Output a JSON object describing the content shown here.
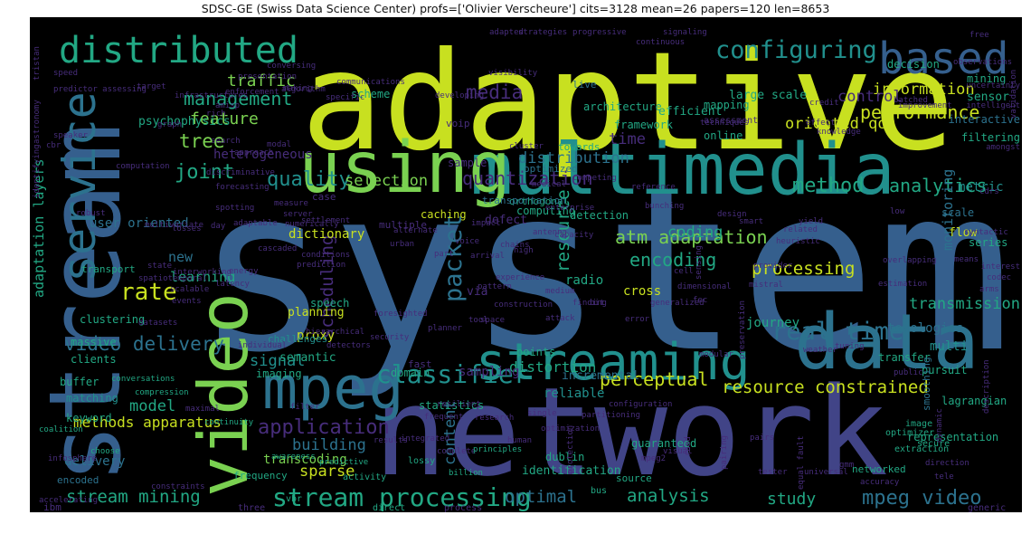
{
  "title": "SDSC-GE (Swiss Data Science Center) profs=['Olivier Verscheure'] cits=3128 mean=26 papers=120 len=8653",
  "palette": {
    "yellow": "#c8e020",
    "lime": "#7ad151",
    "green": "#3dbc74",
    "teal": "#22a884",
    "cyan": "#21908d",
    "steel": "#2c728e",
    "blue": "#355f8d",
    "indigo": "#414487",
    "purple": "#472d7b",
    "violet": "#440154"
  },
  "words": [
    {
      "t": "system"
    },
    {
      "t": "adaptive"
    },
    {
      "t": "network"
    },
    {
      "t": "stream"
    },
    {
      "t": "multimedia"
    },
    {
      "t": "using"
    },
    {
      "t": "data"
    },
    {
      "t": "video"
    },
    {
      "t": "streaming"
    },
    {
      "t": "based"
    },
    {
      "t": "distributed"
    },
    {
      "t": "mpeg"
    },
    {
      "t": "service"
    },
    {
      "t": "stream processing"
    },
    {
      "t": "configuring"
    },
    {
      "t": "classifier"
    },
    {
      "t": "real time"
    },
    {
      "t": "video delivery"
    },
    {
      "t": "stream mining"
    },
    {
      "t": "application"
    },
    {
      "t": "management"
    },
    {
      "t": "quality"
    },
    {
      "t": "packet"
    },
    {
      "t": "rate"
    },
    {
      "t": "tree"
    },
    {
      "t": "joint"
    },
    {
      "t": "media"
    },
    {
      "t": "method"
    },
    {
      "t": "analytics"
    },
    {
      "t": "performance"
    },
    {
      "t": "atm adaptation"
    },
    {
      "t": "quantization"
    },
    {
      "t": "perceptual"
    },
    {
      "t": "resource constrained"
    },
    {
      "t": "encoding"
    },
    {
      "t": "processing"
    },
    {
      "t": "optimal"
    },
    {
      "t": "analysis"
    },
    {
      "t": "study"
    },
    {
      "t": "mpeg video"
    },
    {
      "t": "traffic"
    },
    {
      "t": "feature"
    },
    {
      "t": "information"
    },
    {
      "t": "oriented qos"
    },
    {
      "t": "control"
    },
    {
      "t": "distribution"
    },
    {
      "t": "selection"
    },
    {
      "t": "coding"
    },
    {
      "t": "resource"
    },
    {
      "t": "scheduling"
    },
    {
      "t": "signal"
    },
    {
      "t": "model"
    },
    {
      "t": "building"
    },
    {
      "t": "sparse"
    },
    {
      "t": "content"
    },
    {
      "t": "distortion"
    },
    {
      "t": "methods apparatus"
    },
    {
      "t": "adaptation layers"
    },
    {
      "t": "new"
    },
    {
      "t": "learning"
    },
    {
      "t": "user oriented"
    },
    {
      "t": "heterogeneous"
    },
    {
      "t": "psychophysics"
    },
    {
      "t": "large scale"
    },
    {
      "t": "efficient"
    },
    {
      "t": "time"
    },
    {
      "t": "framework"
    },
    {
      "t": "transmission"
    },
    {
      "t": "multi"
    },
    {
      "t": "monitoring"
    },
    {
      "t": "topologies"
    },
    {
      "t": "journey"
    },
    {
      "t": "proxy"
    },
    {
      "t": "dictionary"
    },
    {
      "t": "radio"
    },
    {
      "t": "cross"
    },
    {
      "t": "sampling"
    },
    {
      "t": "reliable"
    },
    {
      "t": "incremental"
    },
    {
      "t": "identification"
    },
    {
      "t": "guaranteed"
    },
    {
      "t": "transcoding"
    },
    {
      "t": "delivery"
    },
    {
      "t": "semantic"
    },
    {
      "t": "planning"
    },
    {
      "t": "via"
    },
    {
      "t": "speech"
    },
    {
      "t": "computing"
    },
    {
      "t": "defect"
    },
    {
      "t": "caching"
    },
    {
      "t": "detection"
    },
    {
      "t": "metric"
    },
    {
      "t": "flow"
    },
    {
      "t": "series"
    },
    {
      "t": "scale"
    },
    {
      "t": "sensor"
    },
    {
      "t": "decision"
    },
    {
      "t": "mining"
    },
    {
      "t": "interactive"
    },
    {
      "t": "filtering"
    },
    {
      "t": "online"
    },
    {
      "t": "towards"
    },
    {
      "t": "assessment"
    },
    {
      "t": "architecture"
    },
    {
      "t": "mapping"
    },
    {
      "t": "live"
    },
    {
      "t": "scheme"
    },
    {
      "t": "voip"
    },
    {
      "t": "sample"
    },
    {
      "t": "optimized"
    },
    {
      "t": "orthogonal"
    },
    {
      "t": "transportation"
    },
    {
      "t": "multiple"
    },
    {
      "t": "case"
    },
    {
      "t": "transport"
    },
    {
      "t": "massive"
    },
    {
      "t": "clustering"
    },
    {
      "t": "clients"
    },
    {
      "t": "buffer"
    },
    {
      "t": "keyword"
    },
    {
      "t": "matching"
    },
    {
      "t": "challenges"
    },
    {
      "t": "imaging"
    },
    {
      "t": "points"
    },
    {
      "t": "statistics"
    },
    {
      "t": "domain"
    },
    {
      "t": "fast"
    },
    {
      "t": "transfer"
    },
    {
      "t": "pursuit"
    },
    {
      "t": "lagrangian"
    },
    {
      "t": "smoothing"
    },
    {
      "t": "representation"
    },
    {
      "t": "dublin"
    },
    {
      "t": "source"
    },
    {
      "t": "lossy"
    },
    {
      "t": "encoded"
    },
    {
      "t": "frequency"
    },
    {
      "t": "activity"
    },
    {
      "t": "vbr"
    },
    {
      "t": "bus"
    },
    {
      "t": "networked"
    },
    {
      "t": "extraction"
    },
    {
      "t": "secure"
    },
    {
      "t": "optimizer"
    },
    {
      "t": "image"
    },
    {
      "t": "ibm"
    },
    {
      "t": "generic"
    },
    {
      "t": "direct"
    },
    {
      "t": "process"
    },
    {
      "t": "three"
    },
    {
      "t": "constraints"
    },
    {
      "t": "accelerating"
    },
    {
      "t": "infosphere"
    },
    {
      "t": "choose"
    },
    {
      "t": "coalition"
    },
    {
      "t": "conversations"
    },
    {
      "t": "compression"
    },
    {
      "t": "maximal"
    },
    {
      "t": "continuity"
    },
    {
      "t": "awareness"
    },
    {
      "t": "predictive"
    },
    {
      "t": "complete"
    },
    {
      "t": "results"
    },
    {
      "t": "integrated"
    },
    {
      "t": "billion"
    },
    {
      "t": "principles"
    },
    {
      "t": "visual"
    },
    {
      "t": "pairs"
    },
    {
      "t": "tester"
    },
    {
      "t": "validation"
    },
    {
      "t": "amongst"
    },
    {
      "t": "intelligent"
    },
    {
      "t": "uncertainty"
    },
    {
      "t": "observations"
    },
    {
      "t": "free"
    },
    {
      "t": "signaling"
    },
    {
      "t": "progressive"
    },
    {
      "t": "adapted"
    },
    {
      "t": "strategies"
    },
    {
      "t": "continuous"
    },
    {
      "t": "techniques"
    },
    {
      "t": "knowledge"
    },
    {
      "t": "effect"
    },
    {
      "t": "credit"
    },
    {
      "t": "batched"
    },
    {
      "t": "improvement"
    },
    {
      "t": "presentation"
    },
    {
      "t": "conversing"
    },
    {
      "t": "making"
    },
    {
      "t": "enforcement"
    },
    {
      "t": "infrastructures"
    },
    {
      "t": "algorithm"
    },
    {
      "t": "specific"
    },
    {
      "t": "communications"
    },
    {
      "t": "visibility"
    },
    {
      "t": "speed"
    },
    {
      "t": "predictor assessing"
    },
    {
      "t": "target"
    },
    {
      "t": "amisp"
    },
    {
      "t": "rich"
    },
    {
      "t": "speaker"
    },
    {
      "t": "graph"
    },
    {
      "t": "developing"
    },
    {
      "t": "search"
    },
    {
      "t": "computation"
    },
    {
      "t": "modal"
    },
    {
      "t": "cbr"
    },
    {
      "t": "approach"
    },
    {
      "t": "discriminative"
    },
    {
      "t": "forecasting"
    },
    {
      "t": "server"
    },
    {
      "t": "settlement"
    },
    {
      "t": "enterprise"
    },
    {
      "t": "medical"
    },
    {
      "t": "reference"
    },
    {
      "t": "bunching"
    },
    {
      "t": "cluster"
    },
    {
      "t": "competing"
    },
    {
      "t": "spotting"
    },
    {
      "t": "losses"
    },
    {
      "t": "multivariate"
    },
    {
      "t": "robust"
    },
    {
      "t": "day"
    },
    {
      "t": "cascaded"
    },
    {
      "t": "numerically"
    },
    {
      "t": "adaptable"
    },
    {
      "t": "measure"
    },
    {
      "t": "alternate"
    },
    {
      "t": "impact"
    },
    {
      "t": "chains"
    },
    {
      "t": "antenna"
    },
    {
      "t": "capacity"
    },
    {
      "t": "design"
    },
    {
      "t": "smart"
    },
    {
      "t": "heuristic"
    },
    {
      "t": "related"
    },
    {
      "t": "yield"
    },
    {
      "t": "low"
    },
    {
      "t": "cdrs"
    },
    {
      "t": "syntactic"
    },
    {
      "t": "interest"
    },
    {
      "t": "codec"
    },
    {
      "t": "arms"
    },
    {
      "t": "overlapping"
    },
    {
      "t": "means"
    },
    {
      "t": "estimation"
    },
    {
      "t": "mistral"
    },
    {
      "t": "provider"
    },
    {
      "t": "cell"
    },
    {
      "t": "fec"
    },
    {
      "t": "sensing"
    },
    {
      "t": "voice"
    },
    {
      "t": "part"
    },
    {
      "t": "arrival"
    },
    {
      "t": "experience"
    },
    {
      "t": "pattern"
    },
    {
      "t": "high"
    },
    {
      "t": "medium"
    },
    {
      "t": "bit"
    },
    {
      "t": "generalized"
    },
    {
      "t": "finding"
    },
    {
      "t": "construction"
    },
    {
      "t": "space"
    },
    {
      "t": "planner"
    },
    {
      "t": "foresighted"
    },
    {
      "t": "security"
    },
    {
      "t": "detectors"
    },
    {
      "t": "prediction"
    },
    {
      "t": "state"
    },
    {
      "t": "spatiotemporal"
    },
    {
      "t": "scalable"
    },
    {
      "t": "latency"
    },
    {
      "t": "energy"
    },
    {
      "t": "interworking"
    },
    {
      "t": "events"
    },
    {
      "t": "datasets"
    },
    {
      "t": "individual"
    },
    {
      "t": "hierarchical"
    },
    {
      "t": "modular"
    },
    {
      "t": "weather"
    },
    {
      "t": "tuning"
    },
    {
      "t": "preservation"
    },
    {
      "t": "public"
    },
    {
      "t": "filter"
    },
    {
      "t": "frequent"
    },
    {
      "t": "research"
    },
    {
      "t": "human"
    },
    {
      "t": "optimization"
    },
    {
      "t": "partitioning"
    },
    {
      "t": "configuration"
    },
    {
      "t": "mpeg2"
    },
    {
      "t": "road"
    },
    {
      "t": "universal"
    },
    {
      "t": "gmm"
    },
    {
      "t": "tele"
    },
    {
      "t": "accuracy"
    },
    {
      "t": "equal fault"
    },
    {
      "t": "pairing"
    },
    {
      "t": "protection"
    },
    {
      "t": "dynamic"
    },
    {
      "t": "description"
    },
    {
      "t": "direction"
    },
    {
      "t": "tristan"
    },
    {
      "t": "astronomy"
    },
    {
      "t": "identifying"
    },
    {
      "t": "conditions"
    },
    {
      "t": "urban"
    },
    {
      "t": "tool"
    },
    {
      "t": "attack"
    },
    {
      "t": "error"
    },
    {
      "t": "dimensional"
    },
    {
      "t": "resilient"
    },
    {
      "t": "single"
    },
    {
      "t": "personal"
    },
    {
      "t": "anomaly"
    },
    {
      "t": "latent"
    },
    {
      "t": "fdc"
    },
    {
      "t": "routing"
    },
    {
      "t": "relevance"
    },
    {
      "t": "queries"
    },
    {
      "t": "versions"
    },
    {
      "t": "quantizing"
    },
    {
      "t": "switching"
    },
    {
      "t": "noisy"
    },
    {
      "t": "ip"
    },
    {
      "t": "tax"
    },
    {
      "t": "taming"
    }
  ]
}
